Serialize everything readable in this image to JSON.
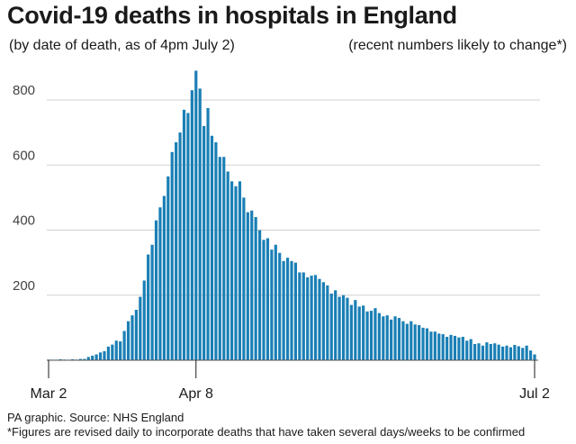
{
  "title": "Covid-19 deaths in hospitals in England",
  "subtitle": "(by date of death, as of 4pm July 2)",
  "note": "(recent numbers likely to change*)",
  "source": "PA graphic. Source: NHS England",
  "footnote": "*Figures are revised daily to incorporate deaths that have taken several days/weeks to be confirmed",
  "bar_color": "#1a7fb5",
  "chart_data": {
    "type": "bar",
    "title": "Covid-19 deaths in hospitals in England",
    "xlabel": "",
    "ylabel": "",
    "ylim": [
      0,
      900
    ],
    "yticks": [
      200,
      400,
      600,
      800
    ],
    "grid": true,
    "x_tick_labels": [
      {
        "label": "Mar 2",
        "index": 0
      },
      {
        "label": "Apr 8",
        "index": 37
      },
      {
        "label": "Jul 2",
        "index": 122
      }
    ],
    "start_date": "2020-03-02",
    "values": [
      2,
      1,
      1,
      3,
      2,
      1,
      3,
      2,
      4,
      4,
      10,
      14,
      18,
      24,
      28,
      42,
      48,
      60,
      58,
      90,
      120,
      138,
      155,
      195,
      245,
      325,
      355,
      430,
      470,
      505,
      565,
      640,
      670,
      700,
      770,
      760,
      830,
      890,
      835,
      720,
      775,
      690,
      670,
      625,
      625,
      580,
      550,
      535,
      550,
      500,
      455,
      460,
      440,
      400,
      370,
      375,
      340,
      355,
      330,
      305,
      315,
      305,
      300,
      270,
      270,
      255,
      260,
      262,
      250,
      240,
      230,
      205,
      215,
      195,
      200,
      192,
      170,
      185,
      165,
      168,
      150,
      152,
      160,
      145,
      135,
      138,
      125,
      135,
      130,
      120,
      112,
      120,
      110,
      108,
      100,
      98,
      88,
      88,
      82,
      80,
      72,
      78,
      75,
      70,
      72,
      60,
      65,
      50,
      52,
      45,
      55,
      50,
      52,
      48,
      42,
      45,
      40,
      47,
      43,
      38,
      45,
      30,
      18
    ]
  }
}
